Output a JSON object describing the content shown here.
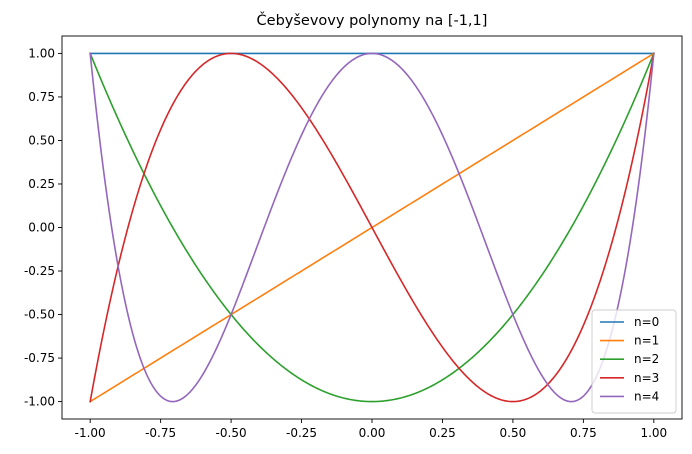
{
  "chart_data": {
    "type": "line",
    "title": "Čebyševovy polynomy na [-1,1]",
    "xlabel": "",
    "ylabel": "",
    "xlim": [
      -1.0,
      1.0
    ],
    "ylim": [
      -1.0,
      1.0
    ],
    "x_ticks": [
      "-1.00",
      "-0.75",
      "-0.50",
      "-0.25",
      "0.00",
      "0.25",
      "0.50",
      "0.75",
      "1.00"
    ],
    "y_ticks": [
      "1.00",
      "0.75",
      "0.50",
      "0.25",
      "0.00",
      "-0.25",
      "-0.50",
      "-0.75",
      "-1.00"
    ],
    "grid": false,
    "legend_position": "lower-right",
    "x": [
      -1.0,
      -0.9,
      -0.8,
      -0.7,
      -0.6,
      -0.5,
      -0.4,
      -0.3,
      -0.2,
      -0.1,
      0.0,
      0.1,
      0.2,
      0.3,
      0.4,
      0.5,
      0.6,
      0.7,
      0.8,
      0.9,
      1.0
    ],
    "series": [
      {
        "name": "n=0",
        "color": "#1f77b4",
        "values": [
          1,
          1,
          1,
          1,
          1,
          1,
          1,
          1,
          1,
          1,
          1,
          1,
          1,
          1,
          1,
          1,
          1,
          1,
          1,
          1,
          1
        ]
      },
      {
        "name": "n=1",
        "color": "#ff7f0e",
        "values": [
          -1.0,
          -0.9,
          -0.8,
          -0.7,
          -0.6,
          -0.5,
          -0.4,
          -0.3,
          -0.2,
          -0.1,
          0.0,
          0.1,
          0.2,
          0.3,
          0.4,
          0.5,
          0.6,
          0.7,
          0.8,
          0.9,
          1.0
        ]
      },
      {
        "name": "n=2",
        "color": "#2ca02c",
        "values": [
          1.0,
          0.62,
          0.28,
          -0.02,
          -0.28,
          -0.5,
          -0.68,
          -0.82,
          -0.92,
          -0.98,
          -1.0,
          -0.98,
          -0.92,
          -0.82,
          -0.68,
          -0.5,
          -0.28,
          -0.02,
          0.28,
          0.62,
          1.0
        ]
      },
      {
        "name": "n=3",
        "color": "#d62728",
        "values": [
          -1.0,
          -0.216,
          0.448,
          0.868,
          0.936,
          1.0,
          0.944,
          0.792,
          0.568,
          0.296,
          0.0,
          -0.296,
          -0.568,
          -0.792,
          -0.944,
          -1.0,
          -0.936,
          -0.868,
          -0.448,
          0.216,
          1.0
        ]
      },
      {
        "name": "n=4",
        "color": "#9467bd",
        "values": [
          1.0,
          -0.3032,
          -0.8432,
          -0.9992,
          -0.8432,
          -0.5,
          -0.0752,
          0.3448,
          0.6928,
          0.9208,
          1.0,
          0.9208,
          0.6928,
          0.3448,
          -0.0752,
          -0.5,
          -0.8432,
          -0.9992,
          -0.8432,
          -0.3032,
          1.0
        ]
      }
    ]
  }
}
